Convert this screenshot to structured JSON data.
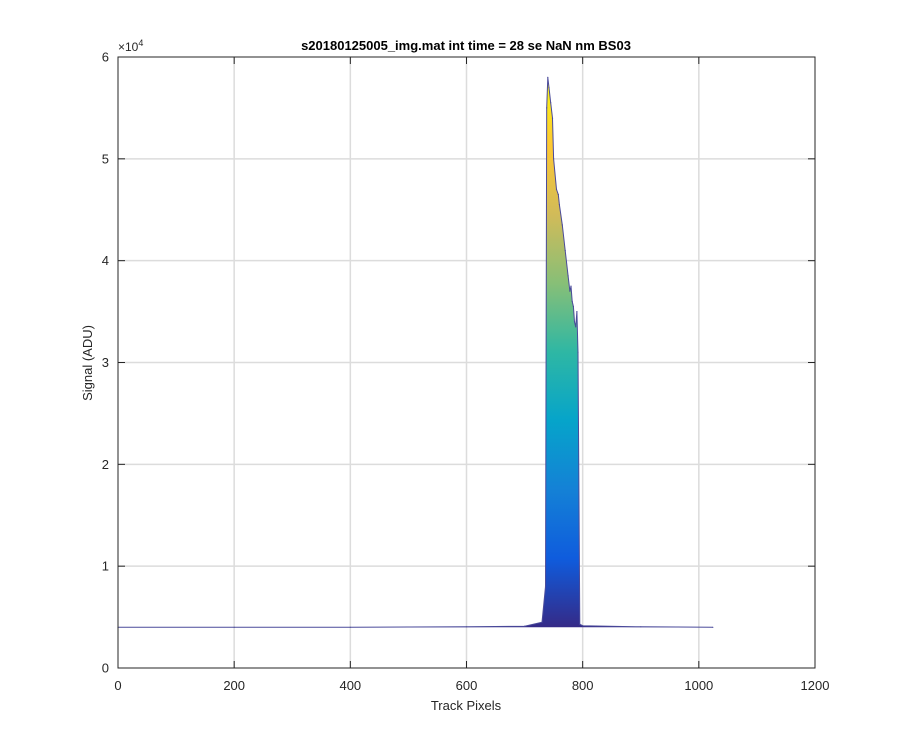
{
  "chart_data": {
    "type": "area",
    "title": "s20180125005_img.mat int time = 28 se  NaN nm BS03",
    "xlabel": "Track Pixels",
    "ylabel": "Signal (ADU)",
    "xlim": [
      0,
      1200
    ],
    "ylim": [
      0,
      60000
    ],
    "xticks": [
      0,
      200,
      400,
      600,
      800,
      1000,
      1200
    ],
    "xtick_labels": [
      "0",
      "200",
      "400",
      "600",
      "800",
      "1000",
      "1200"
    ],
    "yticks": [
      0,
      10000,
      20000,
      30000,
      40000,
      50000,
      60000
    ],
    "ytick_labels": [
      "0",
      "1",
      "2",
      "3",
      "4",
      "5",
      "6"
    ],
    "y_exponent": "×10",
    "y_exponent_power": "4",
    "grid": true,
    "colormap": [
      "#352a87",
      "#0f5cdd",
      "#1481d6",
      "#06a4ca",
      "#2eb7a4",
      "#87bf77",
      "#d1bb59",
      "#fec832",
      "#f9fb0e"
    ],
    "baseline_color": "#4a4a9a",
    "x": [
      0,
      200,
      400,
      600,
      700,
      730,
      736,
      738,
      740,
      742,
      745,
      748,
      750,
      755,
      758,
      760,
      765,
      770,
      775,
      778,
      780,
      782,
      784,
      786,
      788,
      790,
      792,
      795,
      800,
      900,
      1024
    ],
    "y": [
      4000,
      4000,
      4000,
      4050,
      4100,
      4500,
      8000,
      55000,
      58000,
      57000,
      55500,
      54000,
      50000,
      47000,
      46500,
      45500,
      43500,
      41000,
      38500,
      37000,
      37500,
      36000,
      35500,
      34000,
      33500,
      35000,
      31000,
      4300,
      4150,
      4050,
      4000
    ]
  }
}
